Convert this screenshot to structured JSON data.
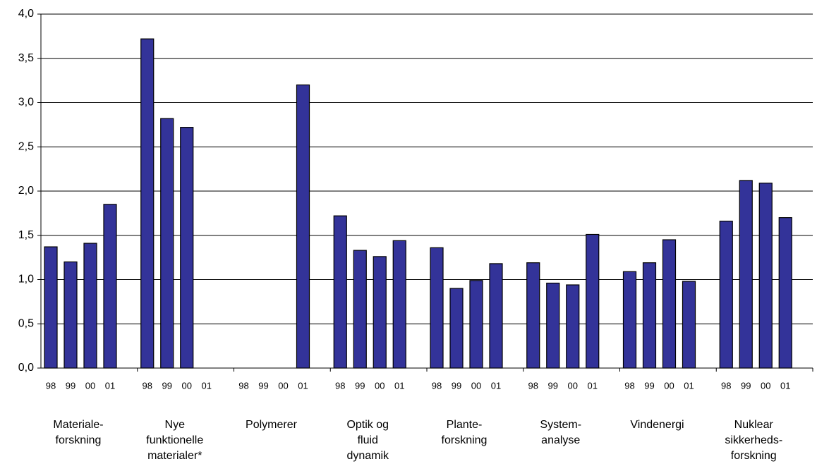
{
  "chart_data": {
    "type": "bar",
    "color": "#333399",
    "grid": true,
    "ylim": [
      0,
      4
    ],
    "yticks": [
      {
        "value": 0,
        "label": "0,0"
      },
      {
        "value": 0.5,
        "label": "0,5"
      },
      {
        "value": 1,
        "label": "1,0"
      },
      {
        "value": 1.5,
        "label": "1,5"
      },
      {
        "value": 2,
        "label": "2,0"
      },
      {
        "value": 2.5,
        "label": "2,5"
      },
      {
        "value": 3,
        "label": "3,0"
      },
      {
        "value": 3.5,
        "label": "3,5"
      },
      {
        "value": 4,
        "label": "4,0"
      }
    ],
    "groups": [
      {
        "name": "Materiale-\nforskning",
        "categories": [
          "98",
          "99",
          "00",
          "01"
        ],
        "values": [
          1.37,
          1.2,
          1.41,
          1.85
        ]
      },
      {
        "name": "Nye\nfunktionelle\nmaterialer*",
        "categories": [
          "98",
          "99",
          "00",
          "01"
        ],
        "values": [
          3.72,
          2.82,
          2.72,
          null
        ]
      },
      {
        "name": "Polymerer",
        "categories": [
          "98",
          "99",
          "00",
          "01"
        ],
        "values": [
          null,
          null,
          null,
          3.2
        ]
      },
      {
        "name": "Optik og\nfluid\ndynamik",
        "categories": [
          "98",
          "99",
          "00",
          "01"
        ],
        "values": [
          1.72,
          1.33,
          1.26,
          1.44
        ]
      },
      {
        "name": "Plante-\nforskning",
        "categories": [
          "98",
          "99",
          "00",
          "01"
        ],
        "values": [
          1.36,
          0.9,
          0.99,
          1.18
        ]
      },
      {
        "name": "System-\nanalyse",
        "categories": [
          "98",
          "99",
          "00",
          "01"
        ],
        "values": [
          1.19,
          0.96,
          0.94,
          1.51
        ]
      },
      {
        "name": "Vindenergi",
        "categories": [
          "98",
          "99",
          "00",
          "01"
        ],
        "values": [
          1.09,
          1.19,
          1.45,
          0.98
        ]
      },
      {
        "name": "Nuklear\nsikkerheds-\nforskning",
        "categories": [
          "98",
          "99",
          "00",
          "01"
        ],
        "values": [
          1.66,
          2.12,
          2.09,
          1.7
        ]
      }
    ]
  }
}
